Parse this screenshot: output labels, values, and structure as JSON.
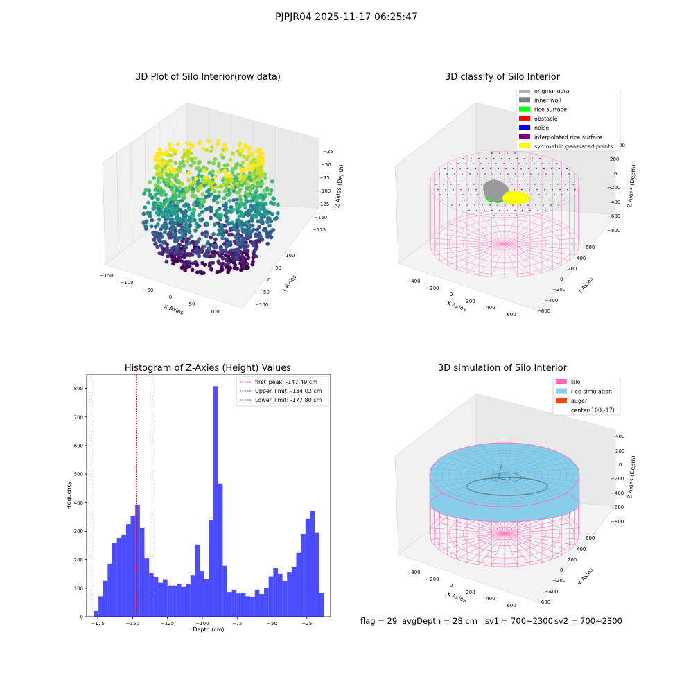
{
  "suptitle": "PJPJR04 2025-11-17 06:25:47",
  "panels": {
    "raw": {
      "title": "3D Plot of Silo Interior(row data)",
      "xlabel": "X Axies",
      "ylabel": "Y Axies",
      "zlabel": "Z Axies (Depth)",
      "xticks": [
        "−150",
        "−100",
        "−50",
        "0",
        "50",
        "100"
      ],
      "yticks": [
        "100",
        "50",
        "0",
        "−50",
        "−100"
      ],
      "zticks": [
        "−25",
        "−50",
        "−75",
        "−100",
        "−125",
        "−150",
        "−175"
      ],
      "colormap": "viridis"
    },
    "classify": {
      "title": "3D classify of Silo Interior",
      "xlabel": "X Axies",
      "ylabel": "Y Axies",
      "zlabel": "Z Axies (Depth)",
      "xticks": [
        "−400",
        "−200",
        "0",
        "200",
        "400",
        "600"
      ],
      "yticks": [
        "600",
        "400",
        "200",
        "0",
        "−200",
        "−400",
        "−600"
      ],
      "zticks": [
        "200",
        "0",
        "−200",
        "−400",
        "−600",
        "−800"
      ],
      "ztick_partial": "00",
      "legend": [
        {
          "label": "original data",
          "color": "#b2b2b2"
        },
        {
          "label": "inner wall",
          "color": "#808080"
        },
        {
          "label": "rice surface",
          "color": "#00ff00"
        },
        {
          "label": "obstacle",
          "color": "#ff0000"
        },
        {
          "label": "noise",
          "color": "#0000ff"
        },
        {
          "label": "interpolated rice surface",
          "color": "#800080"
        },
        {
          "label": "symmetric generated points",
          "color": "#ffff00"
        }
      ]
    },
    "simulation": {
      "title": "3D simulation of Silo Interior",
      "xlabel": "X Axies",
      "ylabel": "Y Axies",
      "zlabel": "Z Axies (Depth)",
      "xticks": [
        "−400",
        "−200",
        "0",
        "200",
        "400",
        "600"
      ],
      "yticks": [
        "600",
        "400",
        "200",
        "0",
        "−200",
        "−400",
        "−600"
      ],
      "zticks": [
        "400",
        "200",
        "0",
        "−200",
        "−400",
        "−600",
        "−800"
      ],
      "legend": [
        {
          "label": "silo",
          "color": "#ff69b4"
        },
        {
          "label": "rice simulation",
          "color": "#87ceeb"
        },
        {
          "label": "auger",
          "color": "#ff4500"
        },
        {
          "label": "center(100,-17)",
          "color": ""
        }
      ]
    }
  },
  "chart_data": {
    "type": "bar",
    "title": "Histogram of Z-Axies (Height) Values",
    "xlabel": "Depth (cm)",
    "ylabel": "Frequency",
    "xlim": [
      -183,
      -8
    ],
    "ylim": [
      0,
      850
    ],
    "xticks": [
      -175,
      -150,
      -125,
      -100,
      -75,
      -50,
      -25
    ],
    "xtick_labels": [
      "−175",
      "−150",
      "−125",
      "−100",
      "−75",
      "−50",
      "−25"
    ],
    "yticks": [
      0,
      100,
      200,
      300,
      400,
      500,
      600,
      700,
      800
    ],
    "bin_start": -177.8,
    "bin_width": 3.3,
    "values": [
      20,
      72,
      127,
      185,
      258,
      275,
      287,
      325,
      355,
      392,
      311,
      206,
      153,
      140,
      120,
      130,
      110,
      110,
      115,
      105,
      115,
      145,
      253,
      160,
      132,
      340,
      808,
      467,
      178,
      87,
      95,
      82,
      85,
      72,
      70,
      95,
      80,
      102,
      142,
      170,
      151,
      124,
      155,
      175,
      224,
      290,
      343,
      370,
      295,
      83
    ],
    "bar_color": "#0000ff",
    "vlines": [
      {
        "label": "first_peak: -147.49 cm",
        "x": -147.49,
        "color": "#ff0000"
      },
      {
        "label": "Upper_limit: -134.02 cm",
        "x": -134.02,
        "color": "#0000ff"
      },
      {
        "label": "Lower_limit: -177.80 cm",
        "x": -177.8,
        "color": "#0000ff"
      }
    ],
    "legend_position": "upper right"
  },
  "status": {
    "flag": "flag = 29",
    "avg_depth": "avgDepth = 28 cm",
    "sv1": "sv1 = 700~2300",
    "sv2": "sv2 = 700~2300"
  }
}
